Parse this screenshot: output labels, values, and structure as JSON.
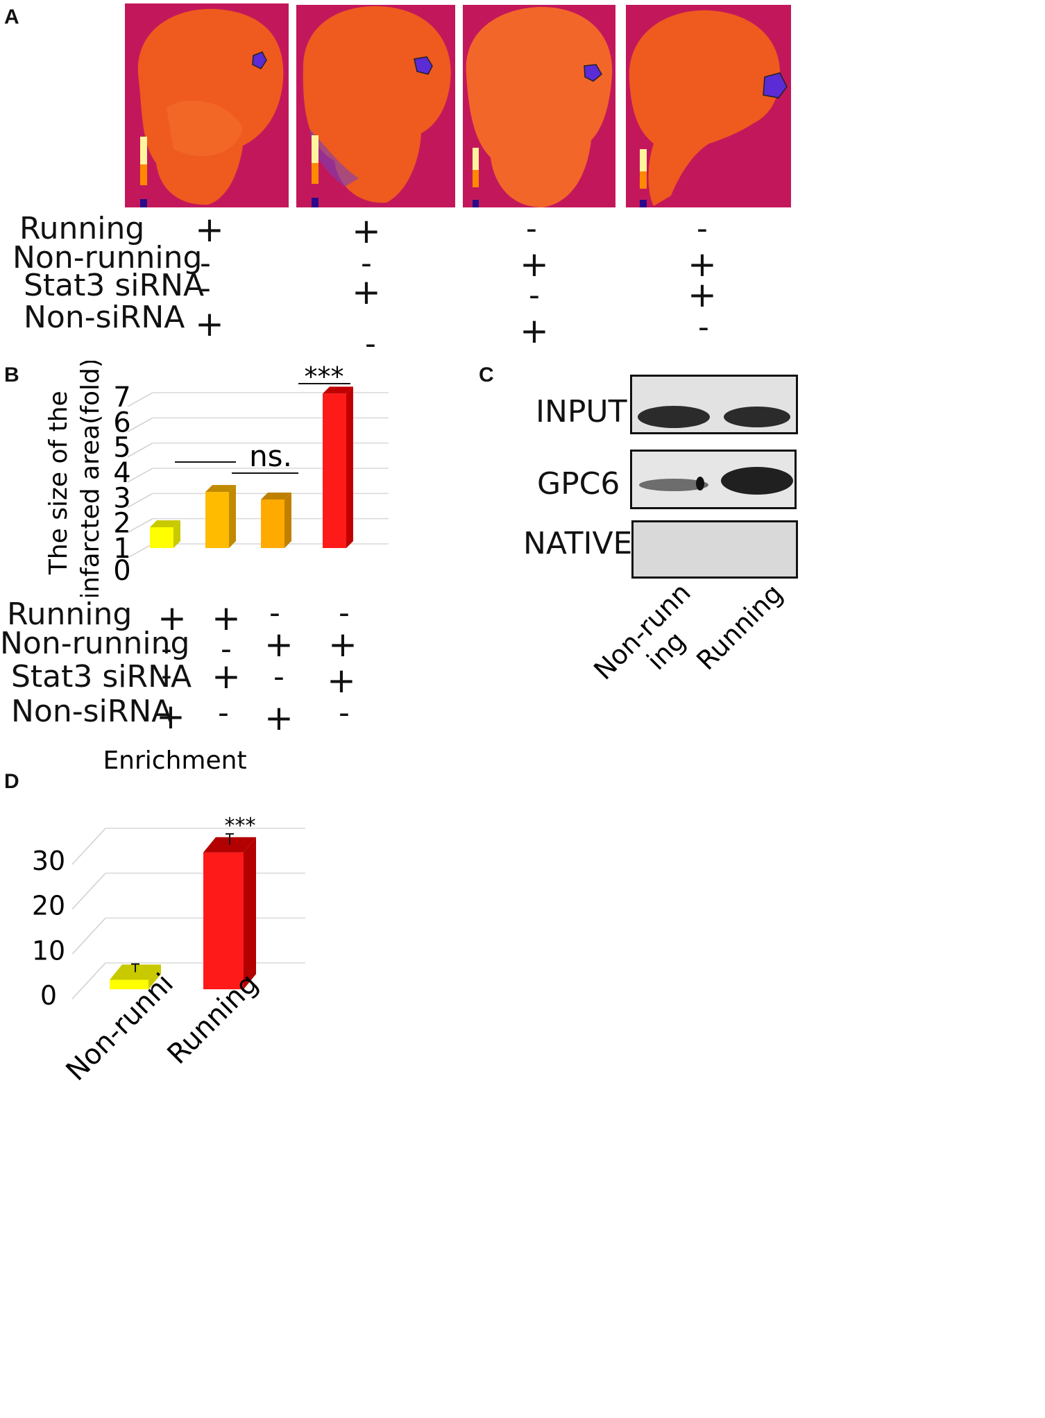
{
  "panels": {
    "a": {
      "letter": "A",
      "condition_labels": [
        "Running",
        "Non-running",
        "Stat3 siRNA",
        "Non-siRNA"
      ],
      "columns": [
        {
          "signs": [
            "+",
            "-",
            "-",
            "+"
          ]
        },
        {
          "signs": [
            "+",
            "-",
            "+",
            "-"
          ]
        },
        {
          "signs": [
            "-",
            "+",
            "-",
            "+"
          ]
        },
        {
          "signs": [
            "-",
            "+",
            "+",
            "-"
          ]
        }
      ],
      "colors": {
        "background": "#c2185b",
        "tissue": "#ef5a1f",
        "infarct": "#5b2bd6"
      }
    },
    "b": {
      "letter": "B",
      "condition_labels": [
        "Running",
        "Non-running",
        "Stat3 siRNA",
        "Non-siRNA"
      ],
      "columns": [
        {
          "signs": [
            "+",
            "-",
            "-",
            "+"
          ]
        },
        {
          "signs": [
            "+",
            "-",
            "+",
            "-"
          ]
        },
        {
          "signs": [
            "-",
            "+",
            "-",
            "+"
          ]
        },
        {
          "signs": [
            "-",
            "+",
            "+",
            "-"
          ]
        }
      ],
      "significance": {
        "ns_label": "ns.",
        "star_label": "***"
      },
      "colors": [
        "#ffff00",
        "#ffbb00",
        "#ffaa00",
        "#ff1a1a"
      ],
      "side_colors": [
        "#c9c900",
        "#c08a00",
        "#bf8000",
        "#c00000"
      ]
    },
    "c": {
      "letter": "C",
      "rows": [
        "INPUT",
        "GPC6",
        "NATIVE"
      ],
      "lanes": [
        "Non-runn\ning",
        "Running"
      ],
      "lane_line1": "Non-runn",
      "lane_line2": "ing",
      "lane2": "Running"
    },
    "d": {
      "letter": "D",
      "colors": [
        "#ffff00",
        "#ff1a1a"
      ],
      "side_colors": [
        "#c9c900",
        "#b30000"
      ],
      "star_label": "***"
    }
  },
  "chart_data": [
    {
      "type": "bar",
      "title": "",
      "xlabel": "",
      "ylabel": "The size of the infarcted area(fold)",
      "ylim": [
        0,
        7
      ],
      "yticks": [
        "0",
        "1",
        "2",
        "3",
        "4",
        "5",
        "6",
        "7"
      ],
      "categories": [
        "Running+/Non-siRNA+",
        "Running+/Stat3 siRNA+",
        "Non-running+/Non-siRNA+",
        "Non-running+/Stat3 siRNA+"
      ],
      "values": [
        1.0,
        2.4,
        2.1,
        6.3
      ]
    },
    {
      "type": "bar",
      "title": "Enrichment",
      "xlabel": "",
      "ylabel": "",
      "ylim": [
        0,
        30
      ],
      "yticks": [
        "0",
        "10",
        "20",
        "30"
      ],
      "categories": [
        "Non-runni",
        "Running"
      ],
      "values": [
        1.8,
        30.2
      ],
      "errors": [
        1.2,
        1.8
      ]
    }
  ]
}
